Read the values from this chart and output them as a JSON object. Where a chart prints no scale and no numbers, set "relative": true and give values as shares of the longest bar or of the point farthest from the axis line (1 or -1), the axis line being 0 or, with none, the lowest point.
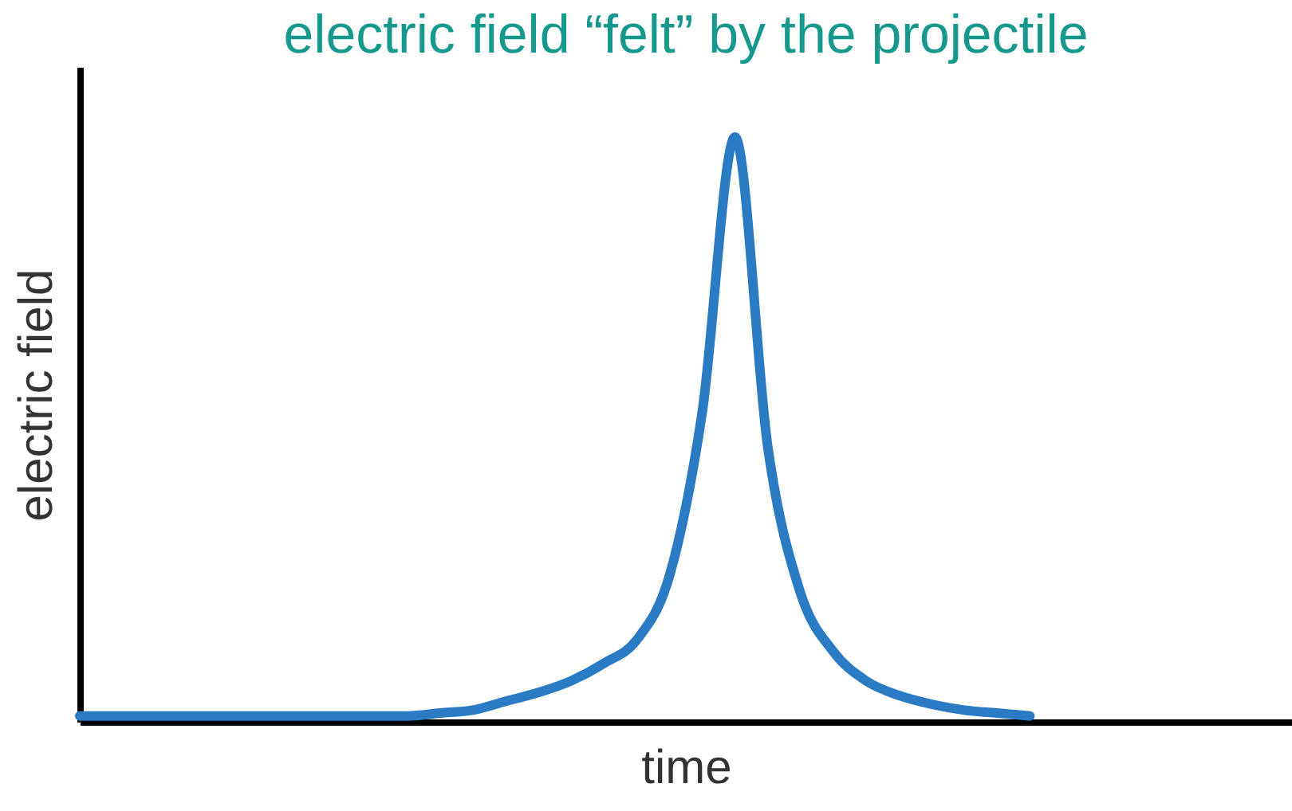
{
  "chart_data": {
    "type": "line",
    "title": "electric field “felt” by the projectile",
    "xlabel": "time",
    "ylabel": "electric field",
    "relative": true,
    "categories": [
      null,
      null,
      null,
      null,
      null,
      null,
      null,
      null,
      null,
      null,
      null,
      null,
      null,
      null,
      null,
      null,
      null,
      null,
      null,
      null,
      null,
      null,
      null,
      null,
      null,
      null,
      null,
      null,
      null,
      null,
      null,
      null,
      null,
      null,
      null,
      null,
      null
    ],
    "series": [
      {
        "color": "#2a7bc4",
        "values": [
          0.01,
          0.01,
          0.01,
          0.01,
          0.01,
          0.01,
          0.01,
          0.01,
          0.01,
          0.01,
          0.01,
          0.015,
          0.02,
          0.035,
          0.05,
          0.07,
          0.1,
          0.14,
          0.25,
          0.53,
          1,
          0.47,
          0.22,
          0.12,
          0.07,
          0.045,
          0.03,
          0.02,
          0.015,
          0.01,
          null,
          null,
          null,
          null,
          null,
          null,
          null
        ]
      }
    ],
    "grid": false,
    "marker": "none",
    "line_style": "solid"
  }
}
